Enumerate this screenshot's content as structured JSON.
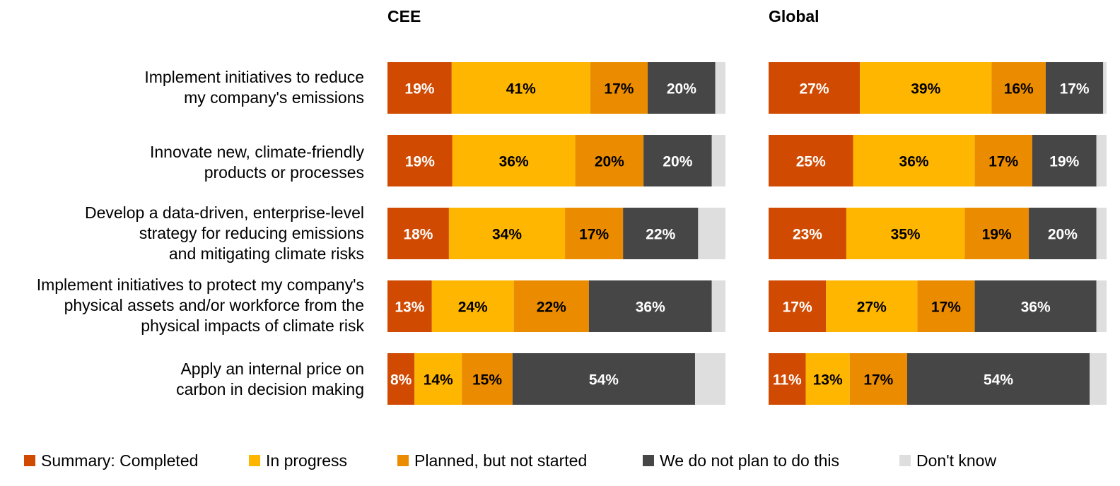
{
  "colors": {
    "completed": "#D04A02",
    "in_progress": "#FFB600",
    "planned": "#EB8C00",
    "no_plan": "#464646",
    "dont_know": "#DEDEDE"
  },
  "legend": [
    {
      "key": "completed",
      "label": "Summary: Completed"
    },
    {
      "key": "in_progress",
      "label": "In progress"
    },
    {
      "key": "planned",
      "label": "Planned, but not started"
    },
    {
      "key": "no_plan",
      "label": "We do not plan to do this"
    },
    {
      "key": "dont_know",
      "label": "Don't know"
    }
  ],
  "chart_data": {
    "type": "bar",
    "orientation": "horizontal-stacked-100",
    "categories": [
      "Implement initiatives to reduce\nmy company's emissions",
      "Innovate new, climate-friendly\nproducts or processes",
      "Develop a data-driven, enterprise-level\nstrategy for reducing emissions\nand mitigating climate risks",
      "Implement initiatives to protect my company's\nphysical assets and/or workforce from the\nphysical impacts of climate risk",
      "Apply an internal price on\ncarbon in decision making"
    ],
    "series_names": [
      "Summary: Completed",
      "In progress",
      "Planned, but not started",
      "We do not plan to do this",
      "Don't know"
    ],
    "panels": [
      {
        "title": "CEE",
        "values": [
          [
            19,
            41,
            17,
            20,
            3
          ],
          [
            19,
            36,
            20,
            20,
            4
          ],
          [
            18,
            34,
            17,
            22,
            8
          ],
          [
            13,
            24,
            22,
            36,
            4
          ],
          [
            8,
            14,
            15,
            54,
            9
          ]
        ],
        "labels": [
          [
            "19%",
            "41%",
            "17%",
            "20%",
            ""
          ],
          [
            "19%",
            "36%",
            "20%",
            "20%",
            ""
          ],
          [
            "18%",
            "34%",
            "17%",
            "22%",
            ""
          ],
          [
            "13%",
            "24%",
            "22%",
            "36%",
            ""
          ],
          [
            "8%",
            "14%",
            "15%",
            "54%",
            ""
          ]
        ]
      },
      {
        "title": "Global",
        "values": [
          [
            27,
            39,
            16,
            17,
            1
          ],
          [
            25,
            36,
            17,
            19,
            3
          ],
          [
            23,
            35,
            19,
            20,
            3
          ],
          [
            17,
            27,
            17,
            36,
            3
          ],
          [
            11,
            13,
            17,
            54,
            5
          ]
        ],
        "labels": [
          [
            "27%",
            "39%",
            "16%",
            "17%",
            ""
          ],
          [
            "25%",
            "36%",
            "17%",
            "19%",
            ""
          ],
          [
            "23%",
            "35%",
            "19%",
            "20%",
            ""
          ],
          [
            "17%",
            "27%",
            "17%",
            "36%",
            ""
          ],
          [
            "11%",
            "13%",
            "17%",
            "54%",
            ""
          ]
        ]
      }
    ],
    "xlim": [
      0,
      100
    ]
  }
}
